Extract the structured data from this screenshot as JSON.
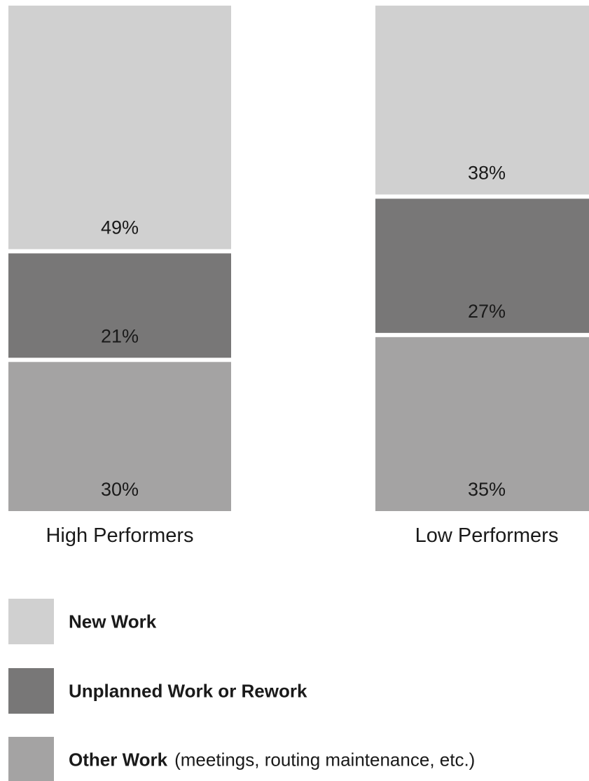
{
  "chart_data": {
    "type": "bar",
    "stacked": true,
    "normalized_percent": true,
    "categories": [
      "High Performers",
      "Low Performers"
    ],
    "series": [
      {
        "name": "New Work",
        "values": [
          49,
          38
        ],
        "labels": [
          "49%",
          "38%"
        ],
        "color": "#d0d0d0"
      },
      {
        "name": "Unplanned Work or Rework",
        "values": [
          21,
          27
        ],
        "labels": [
          "21%",
          "27%"
        ],
        "color": "#787777"
      },
      {
        "name": "Other Work",
        "note": "(meetings, routing maintenance, etc.)",
        "values": [
          30,
          35
        ],
        "labels": [
          "30%",
          "35%"
        ],
        "color": "#a4a3a3"
      }
    ],
    "title": "",
    "xlabel": "",
    "ylabel": "",
    "ylim": [
      0,
      100
    ],
    "grid": false,
    "legend": "bottom-left"
  }
}
